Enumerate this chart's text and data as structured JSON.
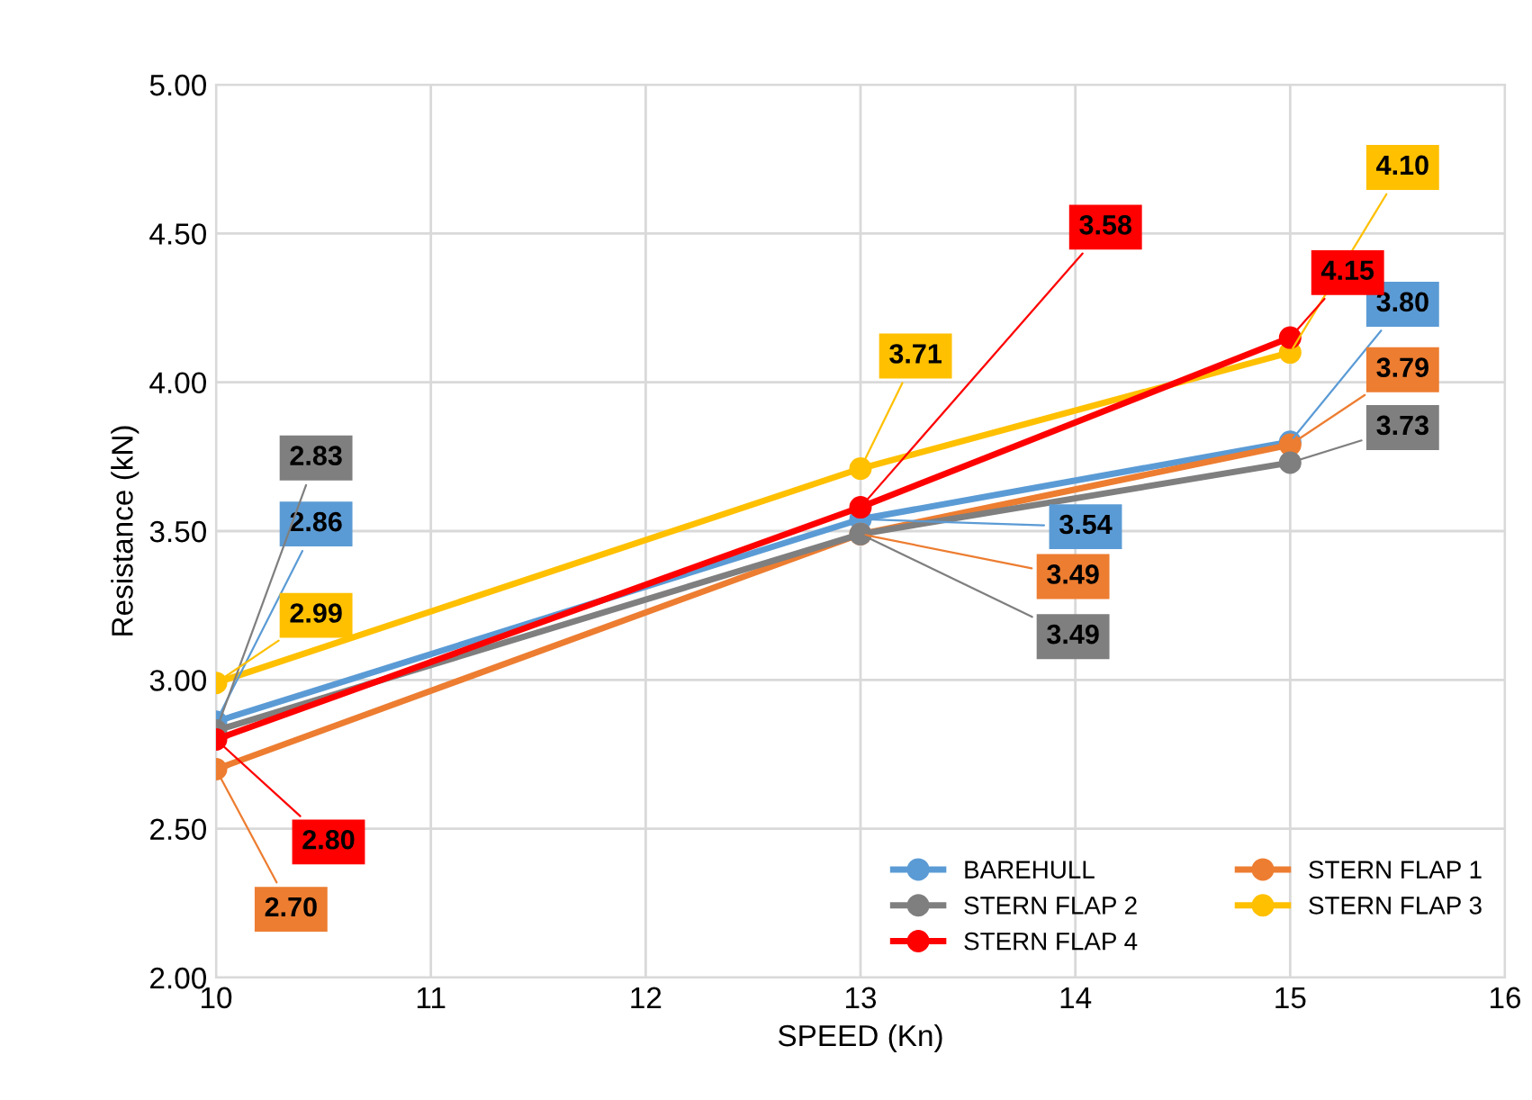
{
  "chart_data": {
    "type": "line",
    "xlabel": "SPEED (Kn)",
    "ylabel": "Resistance (kN)",
    "x": [
      10,
      13,
      15
    ],
    "series": [
      {
        "name": "BAREHULL",
        "color": "#5b9bd5",
        "values": [
          2.86,
          3.54,
          3.8
        ],
        "value_labels": [
          "2.86",
          "3.54",
          "3.80"
        ]
      },
      {
        "name": "STERN FLAP 1",
        "color": "#ed7d31",
        "values": [
          2.7,
          3.49,
          3.79
        ],
        "value_labels": [
          "2.70",
          "3.49",
          "3.79"
        ]
      },
      {
        "name": "STERN FLAP 2",
        "color": "#7f7f7f",
        "values": [
          2.83,
          3.49,
          3.73
        ],
        "value_labels": [
          "2.83",
          "3.49",
          "3.73"
        ]
      },
      {
        "name": "STERN FLAP 3",
        "color": "#ffc000",
        "values": [
          2.99,
          3.71,
          4.1
        ],
        "value_labels": [
          "2.99",
          "3.71",
          "4.10"
        ]
      },
      {
        "name": "STERN FLAP 4",
        "color": "#ff0000",
        "values": [
          2.8,
          3.58,
          4.15
        ],
        "value_labels": [
          "2.80",
          "3.58",
          "4.15"
        ]
      }
    ],
    "xlim": [
      10,
      16
    ],
    "xticks": [
      10,
      11,
      12,
      13,
      14,
      15,
      16
    ],
    "ylim": [
      2,
      5
    ],
    "yticks": [
      {
        "value": 2,
        "label": "2.00"
      },
      {
        "value": 2.5,
        "label": "2.50"
      },
      {
        "value": 3,
        "label": "3.00"
      },
      {
        "value": 3.5,
        "label": "3.50"
      },
      {
        "value": 4,
        "label": "4.00"
      },
      {
        "value": 4.5,
        "label": "4.50"
      },
      {
        "value": 5,
        "label": "5.00"
      }
    ],
    "grid": true,
    "legend": "bottom right",
    "marker": "circle",
    "line_style": "solid"
  }
}
